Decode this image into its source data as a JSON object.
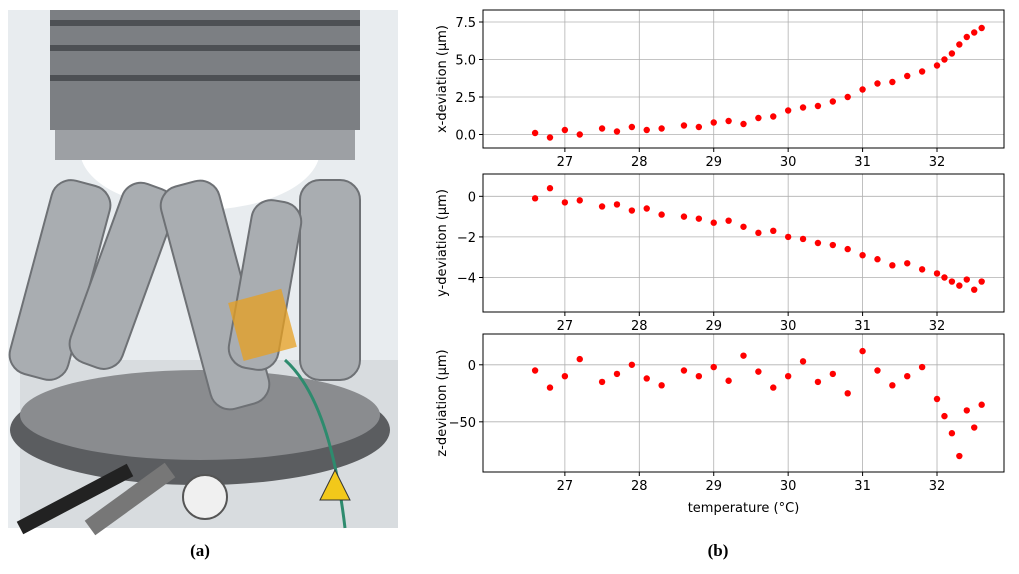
{
  "chart_data": [
    {
      "type": "scatter",
      "y_label": "x-deviation (µm)",
      "color": "#ff0000",
      "grid": true,
      "x": [
        26.6,
        26.8,
        27.0,
        27.2,
        27.5,
        27.7,
        27.9,
        28.1,
        28.3,
        28.6,
        28.8,
        29.0,
        29.2,
        29.4,
        29.6,
        29.8,
        30.0,
        30.2,
        30.4,
        30.6,
        30.8,
        31.0,
        31.2,
        31.4,
        31.6,
        31.8,
        32.0,
        32.1,
        32.2,
        32.3,
        32.4,
        32.5,
        32.6
      ],
      "values": [
        0.1,
        -0.2,
        0.3,
        0.0,
        0.4,
        0.2,
        0.5,
        0.3,
        0.4,
        0.6,
        0.5,
        0.8,
        0.9,
        0.7,
        1.1,
        1.2,
        1.6,
        1.8,
        1.9,
        2.2,
        2.5,
        3.0,
        3.4,
        3.5,
        3.9,
        4.2,
        4.6,
        5.0,
        5.4,
        6.0,
        6.5,
        6.8,
        7.1
      ],
      "xlim": [
        25.9,
        32.9
      ],
      "xticks": [
        27,
        28,
        29,
        30,
        31,
        32
      ],
      "ylim": [
        -0.9,
        8.3
      ],
      "yticks": [
        {
          "value": 0,
          "label": "0.0"
        },
        {
          "value": 2.5,
          "label": "2.5"
        },
        {
          "value": 5,
          "label": "5.0"
        },
        7.5
      ]
    },
    {
      "type": "scatter",
      "y_label": "y-deviation (µm)",
      "color": "#ff0000",
      "grid": true,
      "x": [
        26.6,
        26.8,
        27.0,
        27.2,
        27.5,
        27.7,
        27.9,
        28.1,
        28.3,
        28.6,
        28.8,
        29.0,
        29.2,
        29.4,
        29.6,
        29.8,
        30.0,
        30.2,
        30.4,
        30.6,
        30.8,
        31.0,
        31.2,
        31.4,
        31.6,
        31.8,
        32.0,
        32.1,
        32.2,
        32.3,
        32.4,
        32.5,
        32.6
      ],
      "values": [
        -0.1,
        0.4,
        -0.3,
        -0.2,
        -0.5,
        -0.4,
        -0.7,
        -0.6,
        -0.9,
        -1.0,
        -1.1,
        -1.3,
        -1.2,
        -1.5,
        -1.8,
        -1.7,
        -2.0,
        -2.1,
        -2.3,
        -2.4,
        -2.6,
        -2.9,
        -3.1,
        -3.4,
        -3.3,
        -3.6,
        -3.8,
        -4.0,
        -4.2,
        -4.4,
        -4.1,
        -4.6,
        -4.2
      ],
      "xlim": [
        25.9,
        32.9
      ],
      "xticks": [
        27,
        28,
        29,
        30,
        31,
        32
      ],
      "ylim": [
        -5.7,
        1.1
      ],
      "yticks": [
        {
          "value": -4,
          "label": "−4"
        },
        {
          "value": -2,
          "label": "−2"
        },
        0
      ]
    },
    {
      "type": "scatter",
      "y_label": "z-deviation (µm)",
      "x_label": "temperature (°C)",
      "color": "#ff0000",
      "grid": true,
      "x": [
        26.6,
        26.8,
        27.0,
        27.2,
        27.5,
        27.7,
        27.9,
        28.1,
        28.3,
        28.6,
        28.8,
        29.0,
        29.2,
        29.4,
        29.6,
        29.8,
        30.0,
        30.2,
        30.4,
        30.6,
        30.8,
        31.0,
        31.2,
        31.4,
        31.6,
        31.8,
        32.0,
        32.1,
        32.2,
        32.3,
        32.4,
        32.5,
        32.6
      ],
      "values": [
        -5,
        -20,
        -10,
        5,
        -15,
        -8,
        0,
        -12,
        -18,
        -5,
        -10,
        -2,
        -14,
        8,
        -6,
        -20,
        -10,
        3,
        -15,
        -8,
        -25,
        12,
        -5,
        -18,
        -10,
        -2,
        -30,
        -45,
        -60,
        -80,
        -40,
        -55,
        -35
      ],
      "xlim": [
        25.9,
        32.9
      ],
      "xticks": [
        27,
        28,
        29,
        30,
        31,
        32
      ],
      "ylim": [
        -94,
        27
      ],
      "yticks": [
        {
          "value": -50,
          "label": "−50"
        },
        0
      ]
    }
  ],
  "captions": {
    "a": "(a)",
    "b": "(b)"
  }
}
